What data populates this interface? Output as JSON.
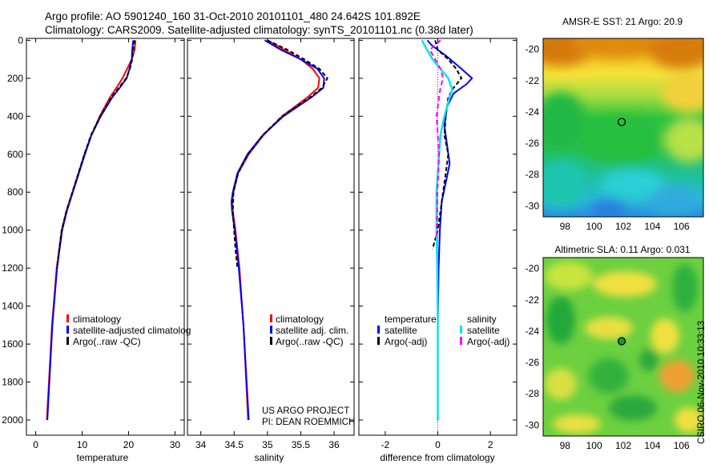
{
  "header": {
    "line1": "Argo profile: AO 5901240_160 31-Oct-2010 20101101_480 24.642S 101.892E",
    "line2": "Climatology: CARS2009. Satellite-adjusted climatology: synTS_20101101.nc (0.38d later)"
  },
  "stamp": "CSIRO 06-Nov-2010 10:33:13",
  "credits": {
    "line1": "US ARGO PROJECT",
    "line2": "PI: DEAN ROEMMICH"
  },
  "colors": {
    "climatology": "#ff0000",
    "satellite": "#0000ff",
    "argo": "#000000",
    "sal_satellite": "#00e5ee",
    "sal_argo": "#ff00ff"
  },
  "chart_data": [
    {
      "type": "line",
      "name": "temperature-profile",
      "xlabel": "temperature",
      "ylabel": "",
      "xlim": [
        -2,
        32
      ],
      "ylim": [
        2080,
        -10
      ],
      "xticks": [
        0,
        10,
        20,
        30
      ],
      "yticks": [
        0,
        200,
        400,
        600,
        800,
        1000,
        1200,
        1400,
        1600,
        1800,
        2000
      ],
      "legend": [
        "climatology",
        "satellite-adjusted climatolog",
        "Argo(..raw -QC)"
      ],
      "series": [
        {
          "name": "climatology",
          "color": "#ff0000",
          "width": 2,
          "depth": [
            0,
            50,
            100,
            150,
            200,
            250,
            300,
            400,
            500,
            600,
            700,
            800,
            900,
            1000,
            1200,
            1500,
            2000
          ],
          "values": [
            21.5,
            21.3,
            20.7,
            19.7,
            18.7,
            17.4,
            16.0,
            13.8,
            12.0,
            10.5,
            9.2,
            7.9,
            6.6,
            5.6,
            4.5,
            3.5,
            2.4
          ]
        },
        {
          "name": "satellite",
          "color": "#0000ff",
          "width": 2,
          "depth": [
            0,
            50,
            100,
            150,
            200,
            250,
            300,
            400,
            500,
            600,
            700,
            800,
            900,
            1000,
            1200,
            1500,
            2000
          ],
          "values": [
            21.0,
            20.8,
            20.7,
            20.2,
            19.6,
            18.1,
            16.5,
            14.0,
            12.0,
            10.6,
            9.3,
            8.0,
            6.7,
            5.7,
            4.6,
            3.6,
            2.5
          ]
        },
        {
          "name": "argo",
          "color": "#000000",
          "width": 2,
          "dash": "5,3",
          "depth": [
            0,
            50,
            100,
            150,
            200,
            250,
            300,
            400,
            500,
            600,
            700,
            800,
            900,
            1000,
            1100,
            1200
          ],
          "values": [
            21.3,
            21.0,
            20.8,
            20.3,
            19.5,
            17.9,
            16.3,
            13.9,
            11.9,
            10.5,
            9.2,
            7.9,
            6.6,
            5.6,
            5.1,
            4.6
          ]
        }
      ]
    },
    {
      "type": "line",
      "name": "salinity-profile",
      "xlabel": "salinity",
      "xlim": [
        33.8,
        36.3
      ],
      "ylim": [
        2080,
        -10
      ],
      "xticks": [
        34,
        34.5,
        35,
        35.5,
        36
      ],
      "legend": [
        "climatology",
        "satellite adj. clim.",
        "Argo(..raw -QC)"
      ],
      "series": [
        {
          "name": "climatology",
          "color": "#ff0000",
          "width": 2,
          "depth": [
            0,
            50,
            100,
            150,
            200,
            250,
            300,
            400,
            500,
            600,
            700,
            800,
            850,
            900,
            1000,
            1200,
            1500,
            2000
          ],
          "values": [
            35.0,
            35.25,
            35.5,
            35.68,
            35.78,
            35.76,
            35.6,
            35.22,
            34.94,
            34.72,
            34.56,
            34.49,
            34.47,
            34.48,
            34.52,
            34.58,
            34.64,
            34.71
          ]
        },
        {
          "name": "satellite",
          "color": "#0000ff",
          "width": 2,
          "depth": [
            0,
            50,
            100,
            150,
            200,
            250,
            300,
            400,
            500,
            600,
            700,
            800,
            850,
            900,
            1000,
            1200,
            1500,
            2000
          ],
          "values": [
            34.96,
            35.2,
            35.5,
            35.75,
            35.85,
            35.84,
            35.66,
            35.24,
            34.93,
            34.7,
            34.55,
            34.48,
            34.46,
            34.47,
            34.51,
            34.57,
            34.64,
            34.72
          ]
        },
        {
          "name": "argo",
          "color": "#000000",
          "width": 2,
          "dash": "5,3",
          "depth": [
            0,
            50,
            100,
            150,
            200,
            250,
            300,
            400,
            500,
            600,
            700,
            800,
            900,
            1000,
            1100,
            1200
          ],
          "values": [
            35.0,
            35.3,
            35.55,
            35.78,
            35.9,
            35.82,
            35.64,
            35.22,
            34.93,
            34.71,
            34.56,
            34.49,
            34.48,
            34.5,
            34.52,
            34.55
          ]
        }
      ]
    },
    {
      "type": "line",
      "name": "difference-profile",
      "xlabel": "difference from climatology",
      "xlim": [
        -3,
        3
      ],
      "ylim": [
        2080,
        -10
      ],
      "xticks": [
        -2,
        0,
        2
      ],
      "legend_temperature": [
        "temperature",
        "satellite",
        "Argo(-adj)"
      ],
      "legend_salinity": [
        "salinity",
        "satellite",
        "Argo(-adj)"
      ],
      "series": [
        {
          "name": "temperature-satellite",
          "color": "#0000ff",
          "width": 2,
          "depth": [
            0,
            30,
            80,
            150,
            200,
            230,
            280,
            350,
            450,
            550,
            650,
            750,
            850,
            1000,
            1200,
            1500,
            2000
          ],
          "values": [
            -0.4,
            -0.2,
            0.3,
            0.9,
            1.3,
            1.1,
            0.6,
            0.35,
            0.25,
            0.35,
            0.45,
            0.3,
            0.15,
            0.08,
            0.03,
            0.0,
            0.0
          ]
        },
        {
          "name": "temperature-argo",
          "color": "#000000",
          "width": 2,
          "dash": "5,3",
          "depth": [
            0,
            50,
            100,
            150,
            200,
            250,
            300,
            400,
            500,
            600,
            700,
            800,
            900,
            1000,
            1100
          ],
          "values": [
            -0.1,
            0.0,
            0.4,
            0.7,
            0.9,
            0.6,
            0.4,
            0.3,
            0.25,
            0.4,
            0.3,
            0.2,
            0.1,
            0.0,
            -0.2
          ]
        },
        {
          "name": "salinity-satellite",
          "color": "#00e5ee",
          "width": 2.5,
          "depth": [
            0,
            40,
            100,
            150,
            200,
            260,
            300,
            400,
            500,
            600,
            700,
            800,
            900,
            1000,
            1200,
            1500,
            2000
          ],
          "values": [
            -0.6,
            -0.45,
            -0.2,
            0.1,
            0.4,
            0.55,
            0.45,
            0.25,
            0.1,
            0.05,
            0.0,
            -0.05,
            -0.05,
            -0.05,
            -0.02,
            0.0,
            0.0
          ]
        },
        {
          "name": "salinity-argo",
          "color": "#ff00ff",
          "width": 2,
          "dash": "6,4",
          "depth": [
            0,
            50,
            100,
            150,
            200,
            250,
            300,
            350,
            400,
            500,
            600,
            700,
            800,
            900,
            1000,
            1050
          ],
          "values": [
            0.1,
            -0.3,
            -0.1,
            0.1,
            0.2,
            0.1,
            0.05,
            0.0,
            -0.05,
            0.0,
            0.05,
            0.02,
            -0.02,
            -0.02,
            -0.05,
            -0.05
          ]
        }
      ]
    },
    {
      "type": "heatmap",
      "name": "sst-map",
      "title": "AMSR-E SST: 21 Argo: 20.9",
      "xticks": [
        98,
        100,
        102,
        104,
        106
      ],
      "yticks": [
        -20,
        -22,
        -24,
        -26,
        -28,
        -30
      ],
      "xlim": [
        96.5,
        107.5
      ],
      "ylim": [
        -30.7,
        -19.3
      ],
      "marker": {
        "lon": 101.892,
        "lat": -24.642
      }
    },
    {
      "type": "heatmap",
      "name": "sla-map",
      "title": "Altimetric SLA: 0.11 Argo: 0.031",
      "xticks": [
        98,
        100,
        102,
        104,
        106
      ],
      "yticks": [
        -20,
        -22,
        -24,
        -26,
        -28,
        -30
      ],
      "xlim": [
        96.5,
        107.5
      ],
      "ylim": [
        -30.7,
        -19.3
      ],
      "marker": {
        "lon": 101.892,
        "lat": -24.642
      }
    }
  ]
}
